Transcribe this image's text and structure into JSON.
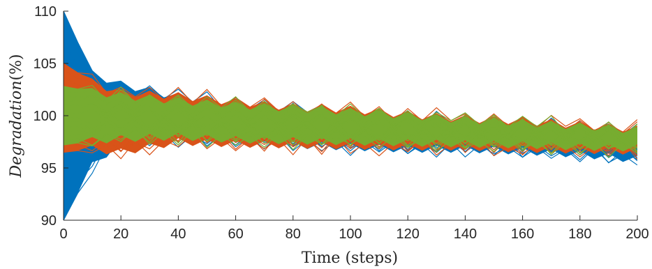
{
  "chart_data": {
    "type": "line",
    "title": "",
    "xlabel": "Time (steps)",
    "ylabel": "Degradation(%)",
    "ylabel_parts": {
      "italic": "Degradation",
      "upright": "(%)"
    },
    "xlim": [
      0,
      200
    ],
    "ylim": [
      90,
      110
    ],
    "xticks": [
      0,
      20,
      40,
      60,
      80,
      100,
      120,
      140,
      160,
      180,
      200
    ],
    "yticks": [
      90,
      95,
      100,
      105,
      110
    ],
    "grid": false,
    "legend": "none",
    "description_of_series": "Three overlapping ensembles of many trajectories (blue, orange, green), each starting with a wide initial spread at t=0 that collapses by t≈10 into a band around 100% with a gentle downward drift to about 97.5% at t=200, oscillating with period 10.",
    "series": [
      {
        "color": "#0072BD",
        "initial_band": [
          90,
          110
        ],
        "band": [
          {
            "x": 0,
            "lo": 90,
            "hi": 110
          },
          {
            "x": 10,
            "lo": 95.2,
            "hi": 104.0
          },
          {
            "x": 20,
            "lo": 97.5,
            "hi": 103.0
          },
          {
            "x": 40,
            "lo": 97.8,
            "hi": 101.8
          },
          {
            "x": 60,
            "lo": 97.4,
            "hi": 101.2
          },
          {
            "x": 80,
            "lo": 97.2,
            "hi": 100.8
          },
          {
            "x": 100,
            "lo": 97.0,
            "hi": 100.3
          },
          {
            "x": 120,
            "lo": 96.8,
            "hi": 99.9
          },
          {
            "x": 140,
            "lo": 96.8,
            "hi": 99.5
          },
          {
            "x": 160,
            "lo": 96.6,
            "hi": 99.2
          },
          {
            "x": 180,
            "lo": 96.3,
            "hi": 98.9
          },
          {
            "x": 200,
            "lo": 95.8,
            "hi": 98.6
          }
        ]
      },
      {
        "color": "#D95319",
        "initial_band": [
          96.5,
          105
        ],
        "band": [
          {
            "x": 0,
            "lo": 96.5,
            "hi": 105.0
          },
          {
            "x": 10,
            "lo": 96.8,
            "hi": 103.2
          },
          {
            "x": 20,
            "lo": 96.5,
            "hi": 102.2
          },
          {
            "x": 40,
            "lo": 97.5,
            "hi": 101.9
          },
          {
            "x": 60,
            "lo": 97.3,
            "hi": 101.3
          },
          {
            "x": 80,
            "lo": 97.2,
            "hi": 100.8
          },
          {
            "x": 100,
            "lo": 97.1,
            "hi": 100.6
          },
          {
            "x": 120,
            "lo": 97.0,
            "hi": 100.1
          },
          {
            "x": 140,
            "lo": 97.0,
            "hi": 99.7
          },
          {
            "x": 160,
            "lo": 96.8,
            "hi": 99.5
          },
          {
            "x": 180,
            "lo": 96.7,
            "hi": 99.1
          },
          {
            "x": 200,
            "lo": 96.6,
            "hi": 98.7
          }
        ]
      },
      {
        "color": "#77AC30",
        "initial_band": [
          97.2,
          102.8
        ],
        "band": [
          {
            "x": 0,
            "lo": 97.2,
            "hi": 102.8
          },
          {
            "x": 10,
            "lo": 97.6,
            "hi": 102.3
          },
          {
            "x": 20,
            "lo": 97.8,
            "hi": 101.9
          },
          {
            "x": 40,
            "lo": 98.0,
            "hi": 101.4
          },
          {
            "x": 60,
            "lo": 97.7,
            "hi": 101.0
          },
          {
            "x": 80,
            "lo": 97.6,
            "hi": 100.7
          },
          {
            "x": 100,
            "lo": 97.5,
            "hi": 100.4
          },
          {
            "x": 120,
            "lo": 97.4,
            "hi": 100.0
          },
          {
            "x": 140,
            "lo": 97.3,
            "hi": 99.6
          },
          {
            "x": 160,
            "lo": 97.2,
            "hi": 99.3
          },
          {
            "x": 180,
            "lo": 97.0,
            "hi": 99.0
          },
          {
            "x": 200,
            "lo": 96.9,
            "hi": 98.6
          }
        ]
      }
    ]
  }
}
